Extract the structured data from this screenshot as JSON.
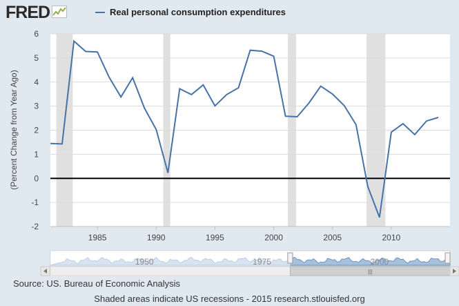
{
  "logo": {
    "text": "FRED"
  },
  "legend": {
    "label": "Real personal consumption expenditures",
    "color": "#4572a7"
  },
  "chart_data": {
    "type": "line",
    "title": "",
    "series": [
      {
        "name": "Real personal consumption expenditures",
        "x": [
          1981,
          1982,
          1983,
          1984,
          1985,
          1986,
          1987,
          1988,
          1989,
          1990,
          1991,
          1992,
          1993,
          1994,
          1995,
          1996,
          1997,
          1998,
          1999,
          2000,
          2001,
          2002,
          2003,
          2004,
          2005,
          2006,
          2007,
          2008,
          2009,
          2010,
          2011,
          2012,
          2013,
          2014
        ],
        "values": [
          1.45,
          1.43,
          5.7,
          5.27,
          5.25,
          4.2,
          3.38,
          4.18,
          2.92,
          2.03,
          0.23,
          3.72,
          3.48,
          3.88,
          3.01,
          3.48,
          3.76,
          5.32,
          5.28,
          5.07,
          2.58,
          2.56,
          3.13,
          3.83,
          3.5,
          3.02,
          2.23,
          -0.33,
          -1.62,
          1.92,
          2.27,
          1.82,
          2.38,
          2.53
        ]
      }
    ],
    "ylabel": "(Percent Change from Year Ago)",
    "xlabel": "",
    "ylim": [
      -2,
      6
    ],
    "yticks": [
      -2,
      -1,
      0,
      1,
      2,
      3,
      4,
      5,
      6
    ],
    "xlim": [
      1981,
      2015
    ],
    "xticks": [
      1985,
      1990,
      1995,
      2000,
      2005,
      2010
    ],
    "recessions": [
      [
        1981.5,
        1982.9
      ],
      [
        1990.6,
        1991.2
      ],
      [
        2001.2,
        2001.9
      ],
      [
        2007.9,
        2009.5
      ]
    ],
    "navigator": {
      "labels": [
        "1950",
        "1975",
        "2000"
      ],
      "label_years": [
        1950,
        1975,
        2000
      ],
      "range": [
        1930,
        2015
      ],
      "selected": [
        1981,
        2015
      ],
      "grip_symbol": "|||"
    },
    "colors": {
      "line": "#4572a7",
      "recession": "#e0e0e0",
      "zero": "#000000",
      "navigator_fill": "#a6c1de"
    }
  },
  "source": "Source: US. Bureau of Economic Analysis",
  "footnote": "Shaded areas indicate US recessions - 2015 research.stlouisfed.org"
}
